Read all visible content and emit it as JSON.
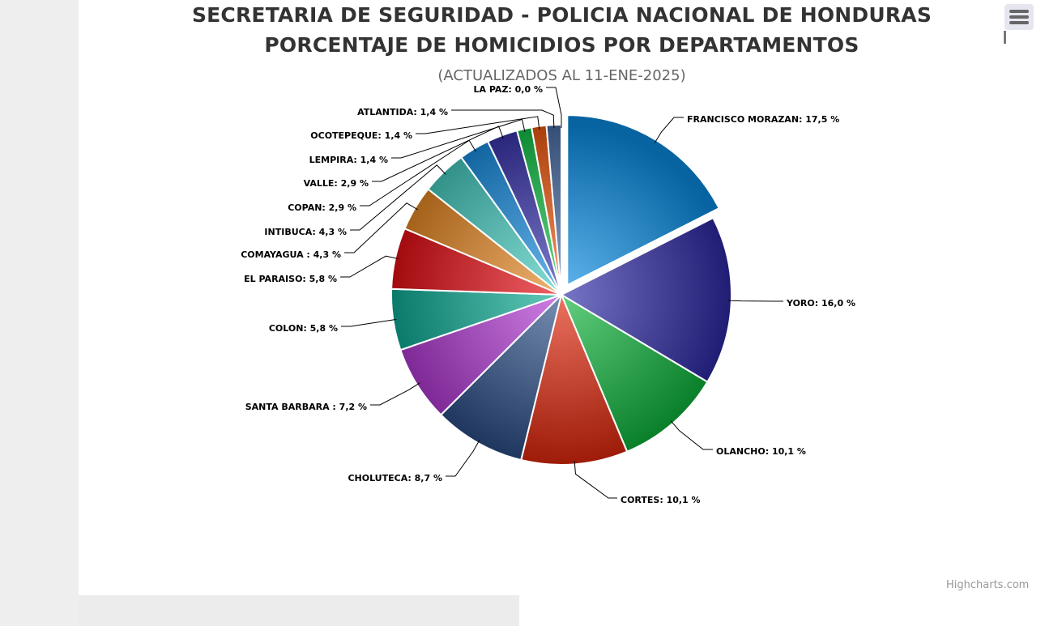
{
  "header": {
    "title_line1": "SECRETARIA DE SEGURIDAD - POLICIA NACIONAL DE HONDURAS",
    "title_line2": "PORCENTAJE DE HOMICIDIOS POR DEPARTAMENTOS",
    "subtitle": "(ACTUALIZADOS AL 11-ENE-2025)"
  },
  "credits": "Highcharts.com",
  "menu": {
    "icon": "hamburger-menu-icon"
  },
  "chart_data": {
    "type": "pie",
    "title": "SECRETARIA DE SEGURIDAD - POLICIA NACIONAL DE HONDURAS PORCENTAJE DE HOMICIDIOS POR DEPARTAMENTOS",
    "subtitle": "(ACTUALIZADOS AL 11-ENE-2025)",
    "unit": "%",
    "slices": [
      {
        "name": "FRANCISCO MORAZAN",
        "value": 17.5,
        "label": "FRANCISCO MORAZAN: 17,5 %",
        "color": "#0a8fe6",
        "sliced": true
      },
      {
        "name": "YORO",
        "value": 16.0,
        "label": "YORO: 16,0 %",
        "color": "#2e2aa6"
      },
      {
        "name": "OLANCHO",
        "value": 10.1,
        "label": "OLANCHO: 10,1 %",
        "color": "#0eb53a"
      },
      {
        "name": "CORTES",
        "value": 10.1,
        "label": "CORTES: 10,1 %",
        "color": "#e0260b"
      },
      {
        "name": "CHOLUTECA",
        "value": 8.7,
        "label": "CHOLUTECA: 8,7 %",
        "color": "#2c4f88"
      },
      {
        "name": "SANTA BARBARA",
        "value": 7.2,
        "label": "SANTA BARBARA : 7,2 %",
        "color": "#b43ad6"
      },
      {
        "name": "COLON",
        "value": 5.8,
        "label": "COLON: 5,8 %",
        "color": "#0eae97"
      },
      {
        "name": "EL PARAISO",
        "value": 5.8,
        "label": "EL PARAISO: 5,8 %",
        "color": "#e80e14"
      },
      {
        "name": "COMAYAGUA",
        "value": 4.3,
        "label": "COMAYAGUA : 4,3 %",
        "color": "#ea8a25"
      },
      {
        "name": "INTIBUCA",
        "value": 4.3,
        "label": "INTIBUCA: 4,3 %",
        "color": "#48cfc3"
      },
      {
        "name": "COPAN",
        "value": 2.9,
        "label": "COPAN: 2,9 %",
        "color": "#1a90e4"
      },
      {
        "name": "VALLE",
        "value": 2.9,
        "label": "VALLE: 2,9 %",
        "color": "#3a36b0"
      },
      {
        "name": "LEMPIRA",
        "value": 1.4,
        "label": "LEMPIRA: 1,4 %",
        "color": "#16c44a"
      },
      {
        "name": "OCOTEPEQUE",
        "value": 1.4,
        "label": "OCOTEPEQUE: 1,4 %",
        "color": "#f25a10"
      },
      {
        "name": "ATLANTIDA",
        "value": 1.4,
        "label": "ATLANTIDA: 1,4 %",
        "color": "#4a6fa8"
      },
      {
        "name": "LA PAZ",
        "value": 0.0,
        "label": "LA PAZ: 0,0 %",
        "color": "#c040d8"
      }
    ]
  }
}
